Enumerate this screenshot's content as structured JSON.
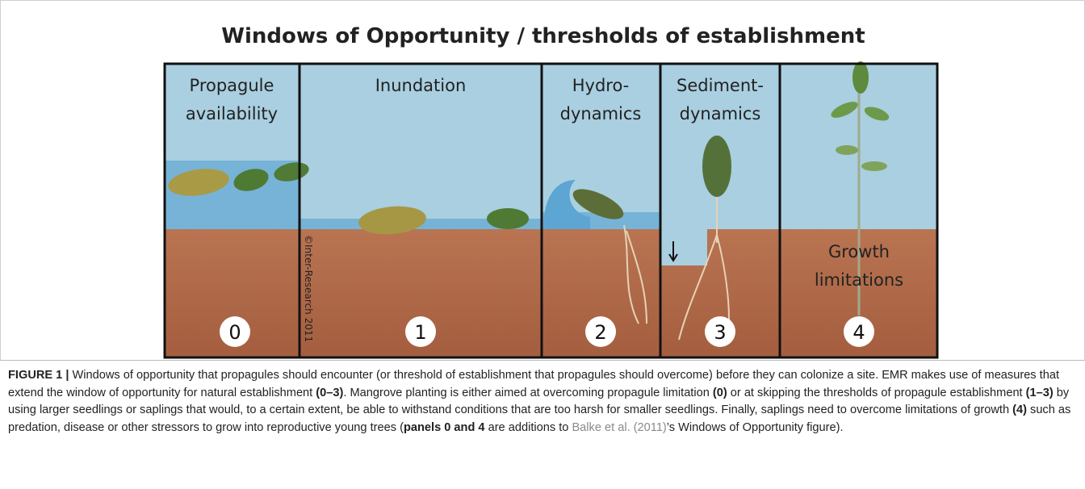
{
  "figure": {
    "title": "Windows of Opportunity / thresholds of establishment",
    "panels": [
      {
        "label": [
          "Propagule",
          "availability"
        ],
        "number": "0"
      },
      {
        "label": [
          "Inundation"
        ],
        "number": "1"
      },
      {
        "label": [
          "Hydro-",
          "dynamics"
        ],
        "number": "2"
      },
      {
        "label": [
          "Sediment-",
          "dynamics"
        ],
        "number": "3"
      },
      {
        "label": [
          "Growth",
          "limitations"
        ],
        "number": "4"
      }
    ],
    "copyright": "©Inter-Research 2011"
  },
  "caption": {
    "segments": [
      "FIGURE 1 |",
      " Windows of opportunity that propagules should encounter (or threshold of establishment that propagules should overcome) before they can colonize a site. EMR makes use of measures that extend the window of opportunity for natural establishment ",
      "(0–3)",
      ". Mangrove planting is either aimed at overcoming propagule limitation ",
      "(0)",
      " or at skipping the thresholds of propagule establishment ",
      "(1–3)",
      " by using larger seedlings or saplings that would, to a certain extent, be able to withstand conditions that are too harsh for smaller seedlings. Finally, saplings need to overcome limitations of growth ",
      "(4)",
      " such as predation, disease or other stressors to grow into reproductive young trees (",
      "panels 0 and 4",
      " are additions to ",
      "Balke et al. (2011)",
      "’s Windows of Opportunity figure)."
    ]
  }
}
